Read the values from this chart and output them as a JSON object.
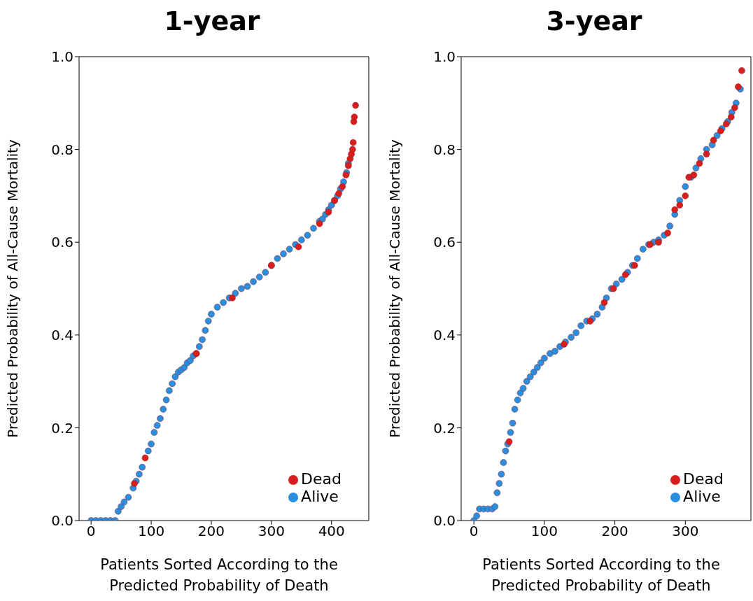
{
  "chart_data": [
    {
      "type": "scatter",
      "title": "1-year",
      "xlabel": "Patients Sorted According to the Predicted Probability of Death",
      "ylabel": "Predicted Probability of All-Cause Mortality",
      "xlim": [
        -20,
        462
      ],
      "xticks": [
        0,
        100,
        200,
        300,
        400
      ],
      "ylim": [
        0,
        1
      ],
      "yticks": [
        {
          "value": 0,
          "label": "0.0"
        },
        {
          "value": 0.2,
          "label": "0.2"
        },
        {
          "value": 0.4,
          "label": "0.4"
        },
        {
          "value": 0.6,
          "label": "0.6"
        },
        {
          "value": 0.8,
          "label": "0.8"
        },
        {
          "value": 1,
          "label": "1.0"
        }
      ],
      "legend": "bottom right",
      "marker": "circle",
      "series": [
        {
          "name": "Alive",
          "color": "#2a8fe0",
          "x": [
            0,
            8,
            16,
            24,
            32,
            40,
            45,
            50,
            55,
            62,
            70,
            75,
            80,
            85,
            95,
            100,
            105,
            110,
            115,
            120,
            125,
            130,
            135,
            140,
            145,
            150,
            155,
            160,
            165,
            170,
            175,
            180,
            185,
            190,
            195,
            200,
            210,
            220,
            230,
            240,
            250,
            260,
            270,
            280,
            290,
            300,
            310,
            320,
            330,
            340,
            350,
            360,
            370,
            380,
            385,
            390,
            395,
            400,
            405,
            410,
            415,
            420,
            425,
            428
          ],
          "values": [
            0,
            0,
            0,
            0,
            0,
            0,
            0.02,
            0.03,
            0.04,
            0.05,
            0.07,
            0.085,
            0.1,
            0.115,
            0.15,
            0.165,
            0.19,
            0.205,
            0.22,
            0.24,
            0.26,
            0.28,
            0.295,
            0.31,
            0.32,
            0.325,
            0.33,
            0.34,
            0.345,
            0.355,
            0.36,
            0.375,
            0.39,
            0.41,
            0.43,
            0.445,
            0.46,
            0.47,
            0.48,
            0.49,
            0.5,
            0.505,
            0.515,
            0.525,
            0.535,
            0.55,
            0.565,
            0.575,
            0.585,
            0.595,
            0.605,
            0.615,
            0.63,
            0.645,
            0.65,
            0.66,
            0.67,
            0.68,
            0.69,
            0.7,
            0.715,
            0.73,
            0.75,
            0.77
          ]
        },
        {
          "name": "Dead",
          "color": "#d81e1e",
          "x": [
            72,
            90,
            175,
            235,
            300,
            345,
            380,
            395,
            405,
            412,
            418,
            424,
            428,
            431,
            433,
            435,
            436,
            437,
            438,
            440
          ],
          "values": [
            0.08,
            0.135,
            0.36,
            0.48,
            0.55,
            0.59,
            0.64,
            0.665,
            0.69,
            0.705,
            0.72,
            0.745,
            0.765,
            0.78,
            0.79,
            0.8,
            0.815,
            0.86,
            0.87,
            0.895
          ]
        }
      ]
    },
    {
      "type": "scatter",
      "title": "3-year",
      "xlabel": "Patients Sorted According to the Predicted Probability of Death",
      "ylabel": "Predicted Probability of All-Cause Mortality",
      "xlim": [
        -18,
        393
      ],
      "xticks": [
        0,
        100,
        200,
        300
      ],
      "ylim": [
        0,
        1
      ],
      "yticks": [
        {
          "value": 0,
          "label": "0.0"
        },
        {
          "value": 0.2,
          "label": "0.2"
        },
        {
          "value": 0.4,
          "label": "0.4"
        },
        {
          "value": 0.6,
          "label": "0.6"
        },
        {
          "value": 0.8,
          "label": "0.8"
        },
        {
          "value": 1,
          "label": "1.0"
        }
      ],
      "legend": "bottom right",
      "marker": "circle",
      "series": [
        {
          "name": "Alive",
          "color": "#2a8fe0",
          "x": [
            0,
            4,
            8,
            14,
            20,
            26,
            30,
            33,
            36,
            39,
            42,
            45,
            48,
            52,
            55,
            58,
            62,
            66,
            70,
            75,
            80,
            85,
            90,
            95,
            100,
            108,
            115,
            122,
            130,
            138,
            145,
            152,
            160,
            168,
            175,
            182,
            188,
            195,
            202,
            210,
            218,
            225,
            232,
            240,
            248,
            255,
            262,
            270,
            278,
            285,
            292,
            300,
            308,
            315,
            322,
            330,
            338,
            345,
            352,
            360,
            366,
            372,
            378
          ],
          "values": [
            0,
            0.01,
            0.025,
            0.025,
            0.025,
            0.025,
            0.03,
            0.06,
            0.08,
            0.1,
            0.125,
            0.15,
            0.165,
            0.19,
            0.21,
            0.24,
            0.26,
            0.275,
            0.285,
            0.3,
            0.31,
            0.32,
            0.33,
            0.34,
            0.35,
            0.36,
            0.365,
            0.375,
            0.385,
            0.395,
            0.405,
            0.42,
            0.43,
            0.435,
            0.445,
            0.46,
            0.48,
            0.5,
            0.51,
            0.52,
            0.535,
            0.55,
            0.565,
            0.585,
            0.595,
            0.6,
            0.605,
            0.615,
            0.635,
            0.66,
            0.69,
            0.72,
            0.74,
            0.76,
            0.78,
            0.8,
            0.81,
            0.83,
            0.845,
            0.86,
            0.88,
            0.9,
            0.93
          ]
        },
        {
          "name": "Dead",
          "color": "#d81e1e",
          "x": [
            50,
            128,
            165,
            185,
            198,
            215,
            228,
            250,
            262,
            275,
            285,
            292,
            300,
            305,
            312,
            320,
            330,
            340,
            350,
            358,
            365,
            370,
            375,
            380
          ],
          "values": [
            0.17,
            0.38,
            0.43,
            0.47,
            0.5,
            0.53,
            0.55,
            0.595,
            0.6,
            0.62,
            0.67,
            0.68,
            0.7,
            0.74,
            0.745,
            0.77,
            0.79,
            0.82,
            0.84,
            0.855,
            0.87,
            0.89,
            0.935,
            0.97
          ]
        }
      ]
    }
  ]
}
